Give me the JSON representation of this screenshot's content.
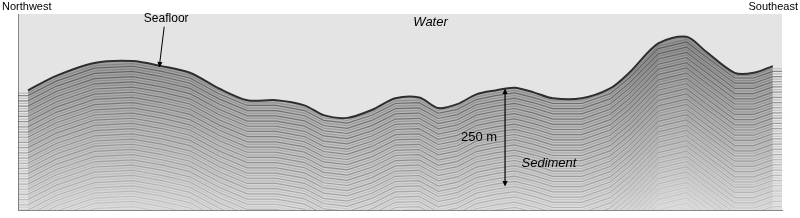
{
  "chart_data": {
    "type": "line",
    "title_left": "Northwest",
    "title_right": "Southeast",
    "x": [
      1.3,
      5,
      10,
      15,
      18.8,
      22.5,
      26.3,
      30,
      33.8,
      37.5,
      40,
      43.1,
      46.3,
      49.4,
      52.5,
      55,
      57.5,
      60,
      62.5,
      65,
      67.5,
      70,
      73.8,
      77.5,
      80,
      83.8,
      87.5,
      90,
      93.8,
      96.3,
      98.8
    ],
    "values": [
      -195,
      -158,
      -125,
      -120,
      -133,
      -150,
      -190,
      -220,
      -220,
      -233,
      -258,
      -265,
      -245,
      -215,
      -213,
      -240,
      -230,
      -205,
      -195,
      -188,
      -200,
      -215,
      -215,
      -190,
      -150,
      -75,
      -58,
      -95,
      -150,
      -150,
      -133
    ],
    "color": "#2e2e2e",
    "xlim": [
      0,
      100
    ],
    "ylim": [
      -500,
      0
    ],
    "tick_labels": false,
    "grid": false,
    "annotations": [
      {
        "text": "Seafloor",
        "x": 19.4,
        "y": -12,
        "arrow_to": [
          18.5,
          -136
        ]
      },
      {
        "text": "Water",
        "x": 54,
        "y": -22
      },
      {
        "text": "Sediment",
        "x": 69.5,
        "y": -380
      }
    ],
    "scale_bar": {
      "label": "250 m",
      "x": 63.75,
      "top": -190,
      "length": 250
    }
  }
}
